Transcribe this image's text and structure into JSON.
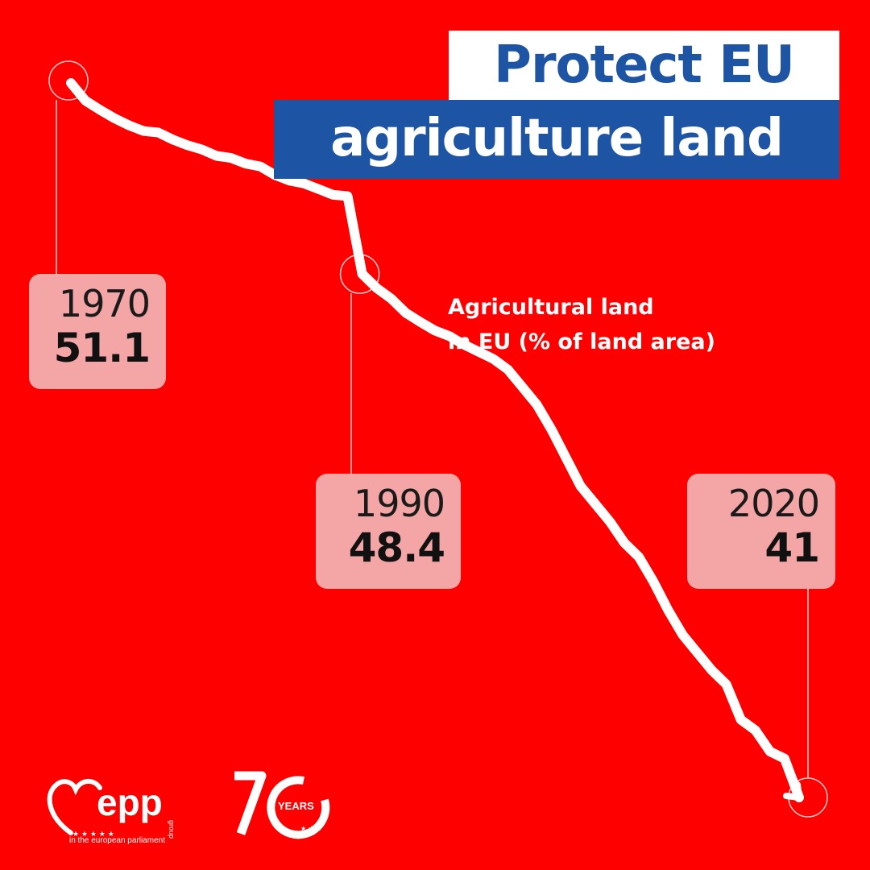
{
  "title_line1": "Protect EU",
  "title_line2": "agriculture land",
  "subtitle_line1": "Agricultural land",
  "subtitle_line2": "in EU (% of land area)",
  "colors": {
    "background": "#fe0000",
    "brand_blue": "#1d54a3",
    "callout": "#f4a6a6",
    "line": "#ffffff"
  },
  "callouts": [
    {
      "year": "1970",
      "value": "51.1"
    },
    {
      "year": "1990",
      "value": "48.4"
    },
    {
      "year": "2020",
      "value": "41"
    }
  ],
  "chart_data": {
    "type": "line",
    "title": "Agricultural land in EU (% of land area)",
    "x": [
      1970,
      1971,
      1972,
      1973,
      1974,
      1975,
      1976,
      1977,
      1978,
      1979,
      1980,
      1981,
      1982,
      1983,
      1984,
      1985,
      1986,
      1987,
      1988,
      1989,
      1990,
      1991,
      1992,
      1993,
      1994,
      1995,
      1996,
      1997,
      1998,
      1999,
      2000,
      2001,
      2002,
      2003,
      2004,
      2005,
      2006,
      2007,
      2008,
      2009,
      2010,
      2011,
      2012,
      2013,
      2014,
      2015,
      2016,
      2017,
      2018,
      2019,
      2020
    ],
    "series": [
      {
        "name": "Agricultural land",
        "values": [
          51.1,
          50.85,
          50.72,
          50.6,
          50.5,
          50.42,
          50.4,
          50.3,
          50.22,
          50.16,
          50.07,
          50.04,
          49.96,
          49.92,
          49.8,
          49.72,
          49.68,
          49.6,
          49.52,
          49.5,
          48.4,
          48.2,
          48.05,
          47.85,
          47.72,
          47.6,
          47.52,
          47.4,
          47.3,
          47.2,
          47.05,
          46.8,
          46.55,
          46.2,
          45.8,
          45.4,
          45.15,
          44.9,
          44.6,
          44.4,
          44.05,
          43.65,
          43.3,
          43.05,
          42.8,
          42.6,
          42.1,
          41.95,
          41.65,
          41.55,
          41.0
        ]
      }
    ],
    "highlighted_points": [
      {
        "x": 1970,
        "y": 51.1
      },
      {
        "x": 1990,
        "y": 48.4
      },
      {
        "x": 2020,
        "y": 41
      }
    ],
    "xlabel": "",
    "ylabel": "",
    "ylim": [
      40.2,
      52.5
    ],
    "grid": false,
    "legend": false
  },
  "logos": {
    "epp_word": "epp",
    "epp_group": "group",
    "epp_tagline": "in the european parliament",
    "anniversary_number": "70",
    "anniversary_word": "YEARS"
  }
}
